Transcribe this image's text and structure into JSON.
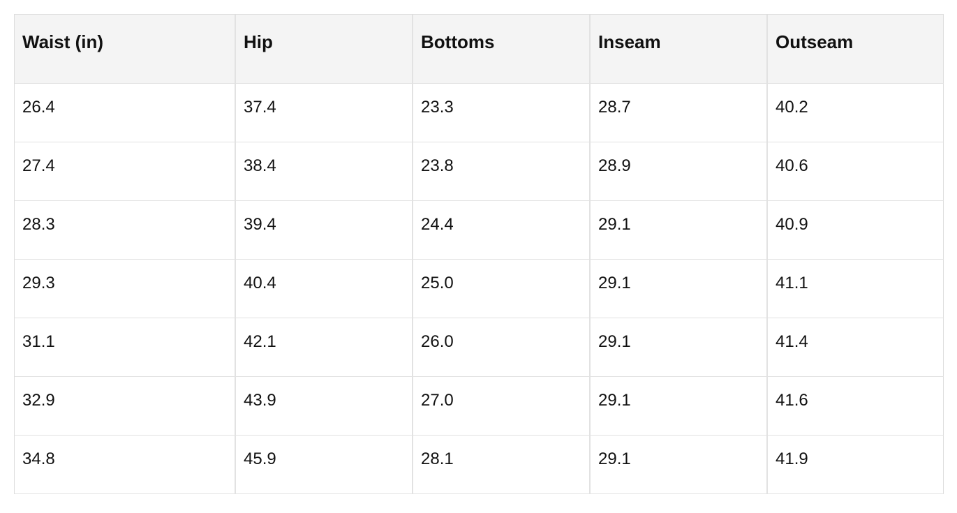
{
  "table": {
    "headers": [
      "Waist (in)",
      "Hip",
      "Bottoms",
      "Inseam",
      "Outseam"
    ],
    "rows": [
      [
        "26.4",
        "37.4",
        "23.3",
        "28.7",
        "40.2"
      ],
      [
        "27.4",
        "38.4",
        "23.8",
        "28.9",
        "40.6"
      ],
      [
        "28.3",
        "39.4",
        "24.4",
        "29.1",
        "40.9"
      ],
      [
        "29.3",
        "40.4",
        "25.0",
        "29.1",
        "41.1"
      ],
      [
        "31.1",
        "42.1",
        "26.0",
        "29.1",
        "41.4"
      ],
      [
        "32.9",
        "43.9",
        "27.0",
        "29.1",
        "41.6"
      ],
      [
        "34.8",
        "45.9",
        "28.1",
        "29.1",
        "41.9"
      ]
    ]
  }
}
